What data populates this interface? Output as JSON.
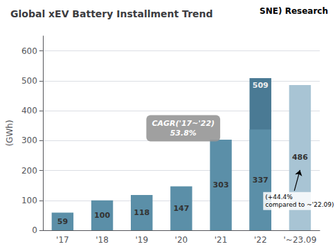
{
  "chart_data": {
    "type": "bar",
    "title": "Global xEV Battery Installment Trend",
    "ylabel": "(GWh)",
    "categories": [
      "'17",
      "'18",
      "'19",
      "'20",
      "'21",
      "'22",
      "'~23.09"
    ],
    "series": [
      {
        "values": [
          59,
          100,
          118,
          147,
          303,
          509,
          486
        ],
        "colors": [
          "#5b8fa8",
          "#5b8fa8",
          "#5b8fa8",
          "#5b8fa8",
          "#5b8fa8",
          "#4a7a94",
          "#a8c4d4"
        ]
      },
      {
        "values": [
          null,
          null,
          null,
          null,
          null,
          337,
          null
        ],
        "color": "#5b8fa8"
      }
    ],
    "ylim": [
      0,
      650
    ],
    "yticks": [
      0,
      100,
      200,
      300,
      400,
      500,
      600
    ],
    "grid": true,
    "data_labels": true,
    "annotations": [
      "CAGR('17~'22)\n53.8%",
      "(+44.4%\ncompared to ~'22.09)",
      "SNE) Research"
    ]
  }
}
